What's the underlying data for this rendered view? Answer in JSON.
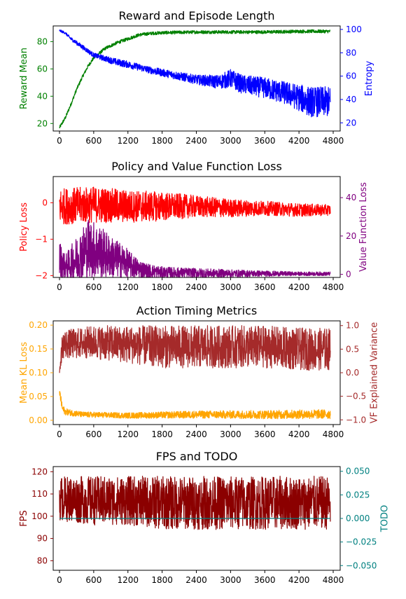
{
  "chart_data": [
    {
      "type": "line",
      "title": "Reward and Episode Length",
      "xlim": [
        0,
        4800
      ],
      "xticks": [
        0,
        600,
        1200,
        1800,
        2400,
        3000,
        3600,
        4200,
        4800
      ],
      "left_axis": {
        "label": "Reward Mean",
        "color": "#008000",
        "ylim": [
          14.5,
          91.5
        ],
        "ticks": [
          20,
          40,
          60,
          80
        ]
      },
      "right_axis": {
        "label": "Entropy",
        "color": "#0000ff",
        "ylim": [
          13,
          103
        ],
        "ticks": [
          20,
          40,
          60,
          80,
          100
        ]
      },
      "series": [
        {
          "axis": "left",
          "color": "#008000",
          "noise": 1.2,
          "x": [
            0,
            100,
            200,
            300,
            400,
            500,
            600,
            800,
            1000,
            1200,
            1400,
            1600,
            1800,
            2400,
            3000,
            3600,
            4200,
            4750
          ],
          "y": [
            17,
            24,
            34,
            45,
            54,
            62,
            68,
            75,
            79,
            82,
            85,
            86,
            86.5,
            87,
            87,
            87,
            87.5,
            87.5
          ]
        },
        {
          "axis": "right",
          "color": "#0000ff",
          "x": [
            0,
            100,
            200,
            400,
            600,
            800,
            1000,
            1200,
            1600,
            2000,
            2400,
            2800,
            3000,
            3200,
            3600,
            4000,
            4400,
            4750
          ],
          "y": [
            99,
            97,
            92,
            85,
            78,
            75,
            72,
            70,
            65,
            61,
            57,
            55,
            58,
            53,
            50,
            45,
            38,
            38
          ],
          "noise": [
            1,
            1,
            1.5,
            2,
            2,
            2.5,
            3,
            3,
            3,
            3.5,
            4,
            6,
            8,
            8,
            9,
            10,
            13,
            13
          ]
        }
      ]
    },
    {
      "type": "line",
      "title": "Policy and Value Function Loss",
      "xlim": [
        0,
        4800
      ],
      "xticks": [
        0,
        600,
        1200,
        1800,
        2400,
        3000,
        3600,
        4200,
        4800
      ],
      "left_axis": {
        "label": "Policy Loss",
        "color": "#ff0000",
        "ylim": [
          -2.05,
          0.72
        ],
        "ticks": [
          -2,
          -1,
          0
        ],
        "tick_labels": [
          "−2",
          "−1",
          "0"
        ]
      },
      "right_axis": {
        "label": "Value Function Loss",
        "color": "#800080",
        "ylim": [
          -1.6,
          51
        ],
        "ticks": [
          0,
          20,
          40
        ]
      },
      "series": [
        {
          "axis": "left",
          "color": "#ff0000",
          "x": [
            0,
            600,
            1200,
            1800,
            2400,
            3000,
            3600,
            4200,
            4750
          ],
          "y": [
            -0.1,
            -0.05,
            -0.1,
            -0.1,
            -0.1,
            -0.15,
            -0.15,
            -0.2,
            -0.2
          ],
          "noise": [
            0.5,
            0.5,
            0.45,
            0.4,
            0.3,
            0.25,
            0.2,
            0.18,
            0.15
          ]
        },
        {
          "axis": "right",
          "color": "#800080",
          "x": [
            0,
            100,
            300,
            500,
            700,
            900,
            1100,
            1300,
            1500,
            1800,
            2400,
            3000,
            3600,
            4200,
            4750
          ],
          "y": [
            8,
            4,
            8,
            14,
            12,
            9,
            7,
            4,
            2,
            1,
            0.7,
            0.5,
            0.4,
            0.3,
            0.3
          ],
          "noise": [
            10,
            6,
            12,
            16,
            14,
            11,
            9,
            6,
            4,
            3,
            2.5,
            2,
            1.5,
            1,
            1
          ]
        }
      ]
    },
    {
      "type": "line",
      "title": "Action Timing Metrics",
      "xlim": [
        0,
        4800
      ],
      "xticks": [
        0,
        600,
        1200,
        1800,
        2400,
        3000,
        3600,
        4200,
        4800
      ],
      "left_axis": {
        "label": "Mean KL Loss",
        "color": "#ffa500",
        "ylim": [
          -0.009,
          0.209
        ],
        "ticks": [
          0.0,
          0.05,
          0.1,
          0.15,
          0.2
        ],
        "tick_labels": [
          "0.00",
          "0.05",
          "0.10",
          "0.15",
          "0.20"
        ]
      },
      "right_axis": {
        "label": "VF Explained Variance",
        "color": "#a52a2a",
        "ylim": [
          -1.1,
          1.1
        ],
        "ticks": [
          -1.0,
          -0.5,
          0.0,
          0.5,
          1.0
        ],
        "tick_labels": [
          "−1.0",
          "−0.5",
          "0.0",
          "0.5",
          "1.0"
        ]
      },
      "series": [
        {
          "axis": "left",
          "color": "#ffa500",
          "x": [
            0,
            50,
            100,
            400,
            1200,
            2400,
            3600,
            4750
          ],
          "y": [
            0.06,
            0.025,
            0.018,
            0.012,
            0.01,
            0.012,
            0.012,
            0.013
          ],
          "noise": [
            0.01,
            0.008,
            0.007,
            0.006,
            0.006,
            0.008,
            0.009,
            0.01
          ]
        },
        {
          "axis": "right",
          "color": "#a52a2a",
          "x": [
            0,
            50,
            600,
            1200,
            1800,
            2400,
            3000,
            3600,
            4200,
            4750
          ],
          "y": [
            0.0,
            0.6,
            0.65,
            0.6,
            0.55,
            0.55,
            0.55,
            0.55,
            0.5,
            0.5
          ],
          "noise": [
            0.01,
            0.3,
            0.35,
            0.4,
            0.45,
            0.45,
            0.45,
            0.45,
            0.45,
            0.45
          ]
        }
      ]
    },
    {
      "type": "line",
      "title": "FPS and TODO",
      "xlim": [
        0,
        4800
      ],
      "xticks": [
        0,
        600,
        1200,
        1800,
        2400,
        3000,
        3600,
        4200,
        4800
      ],
      "left_axis": {
        "label": "FPS",
        "color": "#8b0000",
        "ylim": [
          75.7,
          122.3
        ],
        "ticks": [
          80,
          90,
          100,
          110,
          120
        ]
      },
      "right_axis": {
        "label": "TODO",
        "color": "#008080",
        "ylim": [
          -0.055,
          0.055
        ],
        "ticks": [
          -0.05,
          -0.025,
          0.0,
          0.025,
          0.05
        ],
        "tick_labels": [
          "−0.050",
          "−0.025",
          "0.000",
          "0.025",
          "0.050"
        ]
      },
      "series": [
        {
          "axis": "left",
          "color": "#8b0000",
          "x": [
            0,
            600,
            1200,
            1800,
            2400,
            3000,
            3600,
            4200,
            4750
          ],
          "y": [
            108,
            107,
            107,
            106,
            106,
            106,
            106,
            106,
            106
          ],
          "noise": [
            10,
            11,
            11,
            12,
            12,
            12,
            12,
            12,
            12
          ]
        },
        {
          "axis": "right",
          "color": "#008080",
          "x": [
            0,
            4750
          ],
          "y": [
            0.0,
            0.0
          ]
        }
      ]
    }
  ]
}
